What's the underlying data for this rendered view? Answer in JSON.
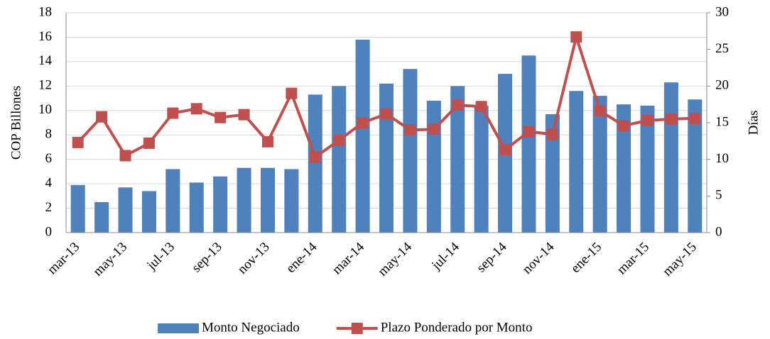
{
  "chart_data": {
    "type": "bar",
    "categories": [
      "mar-13",
      null,
      "may-13",
      null,
      "jul-13",
      null,
      "sep-13",
      null,
      "nov-13",
      null,
      "ene-14",
      null,
      "mar-14",
      null,
      "may-14",
      null,
      "jul-14",
      null,
      "sep-14",
      null,
      "nov-14",
      null,
      "ene-15",
      null,
      "mar-15",
      null,
      "may-15"
    ],
    "series": [
      {
        "name": "Monto Negociado",
        "type": "bar",
        "color": "#4f81bd",
        "values": [
          3.9,
          2.5,
          3.7,
          3.4,
          5.2,
          4.1,
          4.6,
          5.3,
          5.3,
          5.2,
          11.3,
          12.0,
          15.8,
          12.2,
          13.4,
          10.8,
          12.0,
          10.4,
          13.0,
          14.5,
          9.7,
          11.6,
          11.2,
          10.5,
          10.4,
          12.3,
          10.9
        ]
      },
      {
        "name": "Plazo Ponderado por Monto",
        "type": "line",
        "axis": "y2",
        "color": "#c0504d",
        "values": [
          12.3,
          15.8,
          10.5,
          12.2,
          16.3,
          16.9,
          15.7,
          16.1,
          12.4,
          19.0,
          10.3,
          12.6,
          15.0,
          16.2,
          14.0,
          14.1,
          17.4,
          17.2,
          11.3,
          13.8,
          13.4,
          26.7,
          16.6,
          14.6,
          15.3,
          15.5,
          15.6
        ]
      }
    ],
    "ylabel": "COP Billones",
    "y2label": "Días",
    "ylim": [
      0,
      18
    ],
    "yticks": [
      0,
      2,
      4,
      6,
      8,
      10,
      12,
      14,
      16,
      18
    ],
    "y2lim": [
      0,
      30
    ],
    "y2ticks": [
      0,
      5,
      10,
      15,
      20,
      25,
      30
    ],
    "grid": true,
    "legend": "bottom"
  }
}
